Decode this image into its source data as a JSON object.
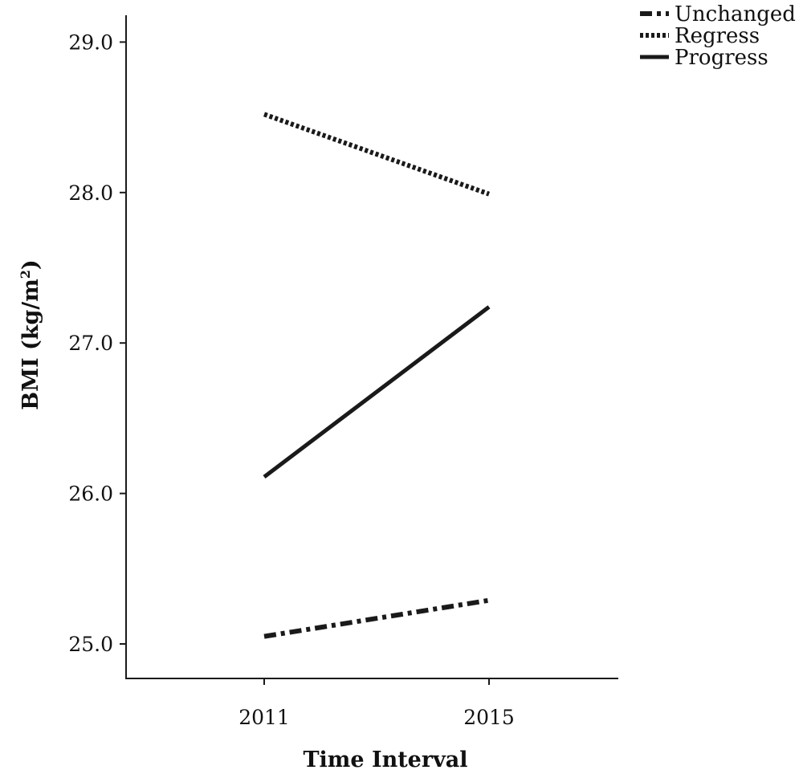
{
  "chart_data": {
    "type": "line",
    "title": "",
    "xlabel": "Time Interval",
    "ylabel_main": "BMI (kg/m",
    "ylabel_sup": "2",
    "ylabel_end": ")",
    "categories": [
      "2011",
      "2015"
    ],
    "y_ticks": [
      "25.0",
      "26.0",
      "27.0",
      "28.0",
      "29.0"
    ],
    "ylim": [
      24.75,
      29.15
    ],
    "grid": false,
    "legend_position": "top-right",
    "series": [
      {
        "name": "Unchanged",
        "values": [
          25.05,
          25.29
        ],
        "style": "dash-dot"
      },
      {
        "name": "Regress",
        "values": [
          28.52,
          27.99
        ],
        "style": "dotted"
      },
      {
        "name": "Progress",
        "values": [
          26.11,
          27.24
        ],
        "style": "solid"
      }
    ],
    "colors": {
      "line": "#1a1a1a"
    }
  }
}
